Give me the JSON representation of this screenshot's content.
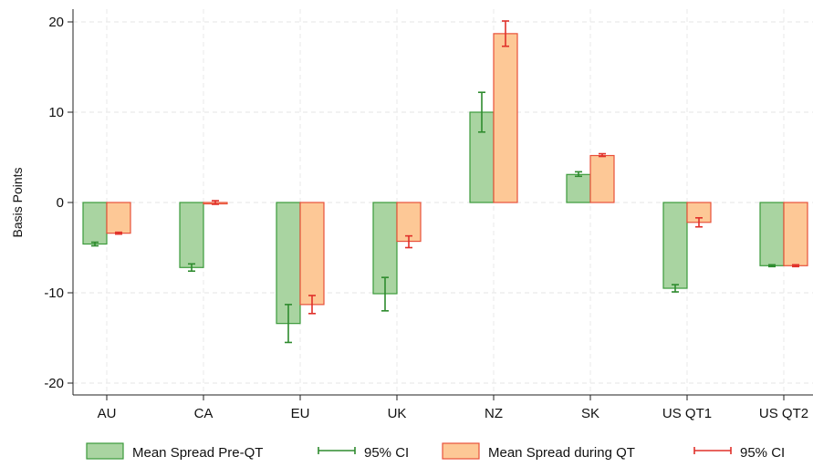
{
  "chart_data": {
    "type": "bar",
    "ylabel": "Basis Points",
    "ylim": [
      -21,
      21
    ],
    "yticks": [
      -20,
      -10,
      0,
      10,
      20
    ],
    "grid": true,
    "legend_position": "bottom",
    "categories": [
      "AU",
      "CA",
      "EU",
      "UK",
      "NZ",
      "SK",
      "US QT1",
      "US QT2"
    ],
    "series": [
      {
        "name": "Mean Spread Pre-QT",
        "color_fill": "#a9d4a1",
        "color_stroke": "#3b9a3b",
        "values": [
          -4.6,
          -7.2,
          -13.4,
          -10.1,
          10.0,
          3.1,
          -9.5,
          -7.0
        ],
        "ci_low": [
          -4.8,
          -7.6,
          -15.5,
          -12.0,
          7.8,
          2.9,
          -9.9,
          -7.1
        ],
        "ci_high": [
          -4.4,
          -6.8,
          -11.3,
          -8.3,
          12.2,
          3.4,
          -9.1,
          -6.9
        ],
        "ci_name": "95% CI",
        "ci_color": "#2e8b2e"
      },
      {
        "name": "Mean Spread during QT",
        "color_fill": "#fdc896",
        "color_stroke": "#e8503a",
        "values": [
          -3.4,
          0.0,
          -11.3,
          -4.3,
          18.7,
          5.2,
          -2.2,
          -7.0
        ],
        "ci_low": [
          -3.5,
          -0.2,
          -12.3,
          -5.0,
          17.3,
          5.1,
          -2.7,
          -7.1
        ],
        "ci_high": [
          -3.3,
          0.2,
          -10.3,
          -3.7,
          20.1,
          5.4,
          -1.7,
          -6.9
        ],
        "ci_name": "95% CI",
        "ci_color": "#e0302a"
      }
    ]
  }
}
